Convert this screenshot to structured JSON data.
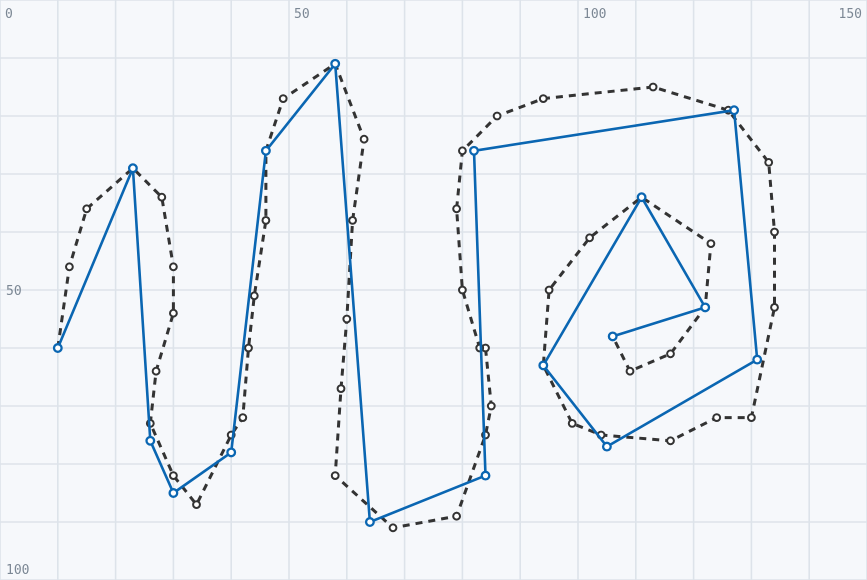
{
  "chart_data": {
    "type": "line",
    "title": "",
    "xlabel": "",
    "ylabel": "",
    "xlim": [
      0,
      150
    ],
    "ylim": [
      0,
      100
    ],
    "y_inverted": true,
    "grid": true,
    "x_tick_labels": [
      {
        "value": 0,
        "label": "0"
      },
      {
        "value": 50,
        "label": "50"
      },
      {
        "value": 100,
        "label": "100"
      },
      {
        "value": 150,
        "label": "150"
      }
    ],
    "y_tick_labels": [
      {
        "value": 0,
        "label": ""
      },
      {
        "value": 50,
        "label": "50"
      },
      {
        "value": 100,
        "label": "100"
      }
    ],
    "series": [
      {
        "style": "dashed",
        "color": "#333333",
        "points": [
          [
            10,
            60
          ],
          [
            12,
            46
          ],
          [
            15,
            36
          ],
          [
            23,
            29
          ],
          [
            28,
            34
          ],
          [
            30,
            46
          ],
          [
            30,
            54
          ],
          [
            27,
            64
          ],
          [
            26,
            73
          ],
          [
            30,
            82
          ],
          [
            34,
            87
          ],
          [
            40,
            75
          ],
          [
            42,
            72
          ],
          [
            43,
            60
          ],
          [
            44,
            51
          ],
          [
            46,
            38
          ],
          [
            46,
            26
          ],
          [
            49,
            17
          ],
          [
            58,
            11
          ],
          [
            63,
            24
          ],
          [
            61,
            38
          ],
          [
            60,
            55
          ],
          [
            59,
            67
          ],
          [
            58,
            82
          ],
          [
            68,
            91
          ],
          [
            79,
            89
          ],
          [
            84,
            75
          ],
          [
            85,
            70
          ],
          [
            84,
            60
          ],
          [
            83,
            60
          ],
          [
            80,
            50
          ],
          [
            79,
            36
          ],
          [
            80,
            26
          ],
          [
            86,
            20
          ],
          [
            94,
            17
          ],
          [
            113,
            15
          ],
          [
            126,
            19
          ],
          [
            133,
            28
          ],
          [
            134,
            40
          ],
          [
            134,
            53
          ],
          [
            130,
            72
          ],
          [
            124,
            72
          ],
          [
            116,
            76
          ],
          [
            104,
            75
          ],
          [
            99,
            73
          ],
          [
            94,
            63
          ],
          [
            95,
            50
          ],
          [
            102,
            41
          ],
          [
            111,
            34
          ],
          [
            123,
            42
          ],
          [
            122,
            53
          ],
          [
            116,
            61
          ],
          [
            109,
            64
          ],
          [
            106,
            58
          ]
        ]
      },
      {
        "style": "solid",
        "color": "#0a66b2",
        "points": [
          [
            10,
            60
          ],
          [
            23,
            29
          ],
          [
            26,
            76
          ],
          [
            30,
            85
          ],
          [
            40,
            78
          ],
          [
            46,
            26
          ],
          [
            58,
            11
          ],
          [
            64,
            90
          ],
          [
            84,
            82
          ],
          [
            82,
            26
          ],
          [
            127,
            19
          ],
          [
            131,
            62
          ],
          [
            105,
            77
          ],
          [
            94,
            63
          ],
          [
            111,
            34
          ],
          [
            122,
            53
          ],
          [
            106,
            58
          ]
        ]
      }
    ]
  }
}
